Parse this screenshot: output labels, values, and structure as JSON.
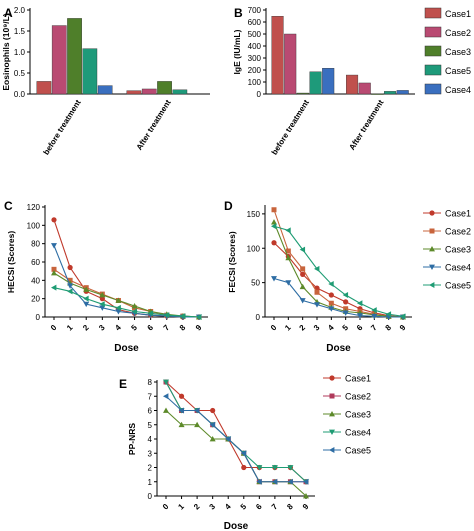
{
  "panel_letters": [
    "A",
    "B",
    "C",
    "D",
    "E"
  ],
  "chart_data": [
    {
      "panel": "A",
      "type": "bar",
      "categories": [
        "before treatment",
        "After treatment"
      ],
      "ylabel": "Eosinophils (10⁹/L)",
      "ylim": [
        0,
        2.0
      ],
      "yticks": [
        "0.0",
        "0.5",
        "1.0",
        "1.5",
        "2.0"
      ],
      "grid": false,
      "series": [
        {
          "name": "Case1",
          "color": "#c0504d",
          "values": [
            0.3,
            0.08
          ]
        },
        {
          "name": "Case2",
          "color": "#b94a72",
          "values": [
            1.63,
            0.12
          ]
        },
        {
          "name": "Case3",
          "color": "#4f7f2a",
          "values": [
            1.8,
            0.3
          ]
        },
        {
          "name": "Case5",
          "color": "#1e9a7a",
          "values": [
            1.08,
            0.1
          ]
        },
        {
          "name": "Case4",
          "color": "#3a6fbf",
          "values": [
            0.2,
            null
          ]
        }
      ]
    },
    {
      "panel": "B",
      "type": "bar",
      "categories": [
        "before treatment",
        "After treatment"
      ],
      "ylabel": "IgE (IU/mL)",
      "ylim": [
        0,
        700
      ],
      "yticks": [
        "0",
        "100",
        "200",
        "300",
        "400",
        "500",
        "600",
        "700"
      ],
      "grid": false,
      "legend_position": "right",
      "series": [
        {
          "name": "Case1",
          "color": "#c0504d",
          "values": [
            648,
            158
          ]
        },
        {
          "name": "Case2",
          "color": "#b94a72",
          "values": [
            500,
            92
          ]
        },
        {
          "name": "Case3",
          "color": "#4f7f2a",
          "values": [
            8,
            2
          ]
        },
        {
          "name": "Case5",
          "color": "#1e9a7a",
          "values": [
            185,
            22
          ]
        },
        {
          "name": "Case4",
          "color": "#3a6fbf",
          "values": [
            215,
            30
          ]
        }
      ]
    },
    {
      "panel": "C",
      "type": "line",
      "xlabel": "Dose",
      "ylabel": "HECSI (Scores)",
      "x": [
        0,
        1,
        2,
        3,
        4,
        5,
        6,
        7,
        8,
        9
      ],
      "ylim": [
        0,
        120
      ],
      "yticks": [
        "0",
        "20",
        "40",
        "60",
        "80",
        "100",
        "120"
      ],
      "grid": false,
      "series": [
        {
          "name": "Case1",
          "color": "#c0392b",
          "marker": "circle",
          "values": [
            106,
            54,
            28,
            20,
            8,
            4,
            2,
            1,
            0,
            0
          ]
        },
        {
          "name": "Case2",
          "color": "#c8643c",
          "marker": "square",
          "values": [
            52,
            40,
            32,
            25,
            18,
            10,
            6,
            2,
            1,
            0
          ]
        },
        {
          "name": "Case3",
          "color": "#5d8a2a",
          "marker": "triangle-up",
          "values": [
            48,
            37,
            30,
            24,
            18,
            12,
            6,
            3,
            1,
            0
          ]
        },
        {
          "name": "Case4",
          "color": "#2e6da4",
          "marker": "triangle-down",
          "values": [
            78,
            34,
            14,
            10,
            6,
            4,
            2,
            1,
            0,
            0
          ]
        },
        {
          "name": "Case5",
          "color": "#1f9c74",
          "marker": "triangle-left",
          "values": [
            32,
            28,
            20,
            14,
            10,
            6,
            4,
            2,
            1,
            0
          ]
        }
      ]
    },
    {
      "panel": "D",
      "type": "line",
      "xlabel": "Dose",
      "ylabel": "FECSI (Scores)",
      "x": [
        0,
        1,
        2,
        3,
        4,
        5,
        6,
        7,
        8,
        9
      ],
      "ylim": [
        0,
        160
      ],
      "yticks": [
        "0",
        "50",
        "100",
        "150"
      ],
      "grid": false,
      "legend_position": "right",
      "series": [
        {
          "name": "Case1",
          "color": "#c0392b",
          "marker": "circle",
          "values": [
            108,
            88,
            62,
            42,
            32,
            22,
            12,
            6,
            2,
            0
          ]
        },
        {
          "name": "Case2",
          "color": "#c8643c",
          "marker": "square",
          "values": [
            156,
            96,
            70,
            36,
            20,
            12,
            8,
            4,
            1,
            0
          ]
        },
        {
          "name": "Case3",
          "color": "#5d8a2a",
          "marker": "triangle-up",
          "values": [
            138,
            86,
            44,
            22,
            14,
            8,
            6,
            3,
            1,
            0
          ]
        },
        {
          "name": "Case4",
          "color": "#2e6da4",
          "marker": "triangle-down",
          "values": [
            56,
            50,
            24,
            18,
            12,
            6,
            2,
            1,
            0,
            0
          ]
        },
        {
          "name": "Case5",
          "color": "#1f9c74",
          "marker": "triangle-left",
          "values": [
            132,
            126,
            98,
            70,
            48,
            32,
            20,
            10,
            4,
            1
          ]
        }
      ]
    },
    {
      "panel": "E",
      "type": "line",
      "xlabel": "Dose",
      "ylabel": "PP-NRS",
      "x": [
        0,
        1,
        2,
        3,
        4,
        5,
        6,
        7,
        8,
        9
      ],
      "ylim": [
        0,
        8
      ],
      "yticks": [
        "0",
        "1",
        "2",
        "3",
        "4",
        "5",
        "6",
        "7",
        "8"
      ],
      "grid": false,
      "legend_position": "right",
      "series": [
        {
          "name": "Case1",
          "color": "#c0392b",
          "marker": "circle",
          "values": [
            8,
            7,
            6,
            6,
            4,
            2,
            2,
            2,
            2,
            1
          ]
        },
        {
          "name": "Case2",
          "color": "#b03a5b",
          "marker": "square",
          "values": [
            8,
            6,
            6,
            5,
            4,
            3,
            1,
            1,
            1,
            1
          ]
        },
        {
          "name": "Case3",
          "color": "#5d8a2a",
          "marker": "triangle-up",
          "values": [
            6,
            5,
            5,
            4,
            4,
            3,
            1,
            1,
            1,
            0
          ]
        },
        {
          "name": "Case4",
          "color": "#1f9c74",
          "marker": "triangle-down",
          "values": [
            8,
            6,
            6,
            5,
            4,
            3,
            2,
            2,
            2,
            1
          ]
        },
        {
          "name": "Case5",
          "color": "#2e6da4",
          "marker": "triangle-left",
          "values": [
            7,
            6,
            6,
            5,
            4,
            3,
            1,
            1,
            1,
            1
          ]
        }
      ]
    }
  ]
}
